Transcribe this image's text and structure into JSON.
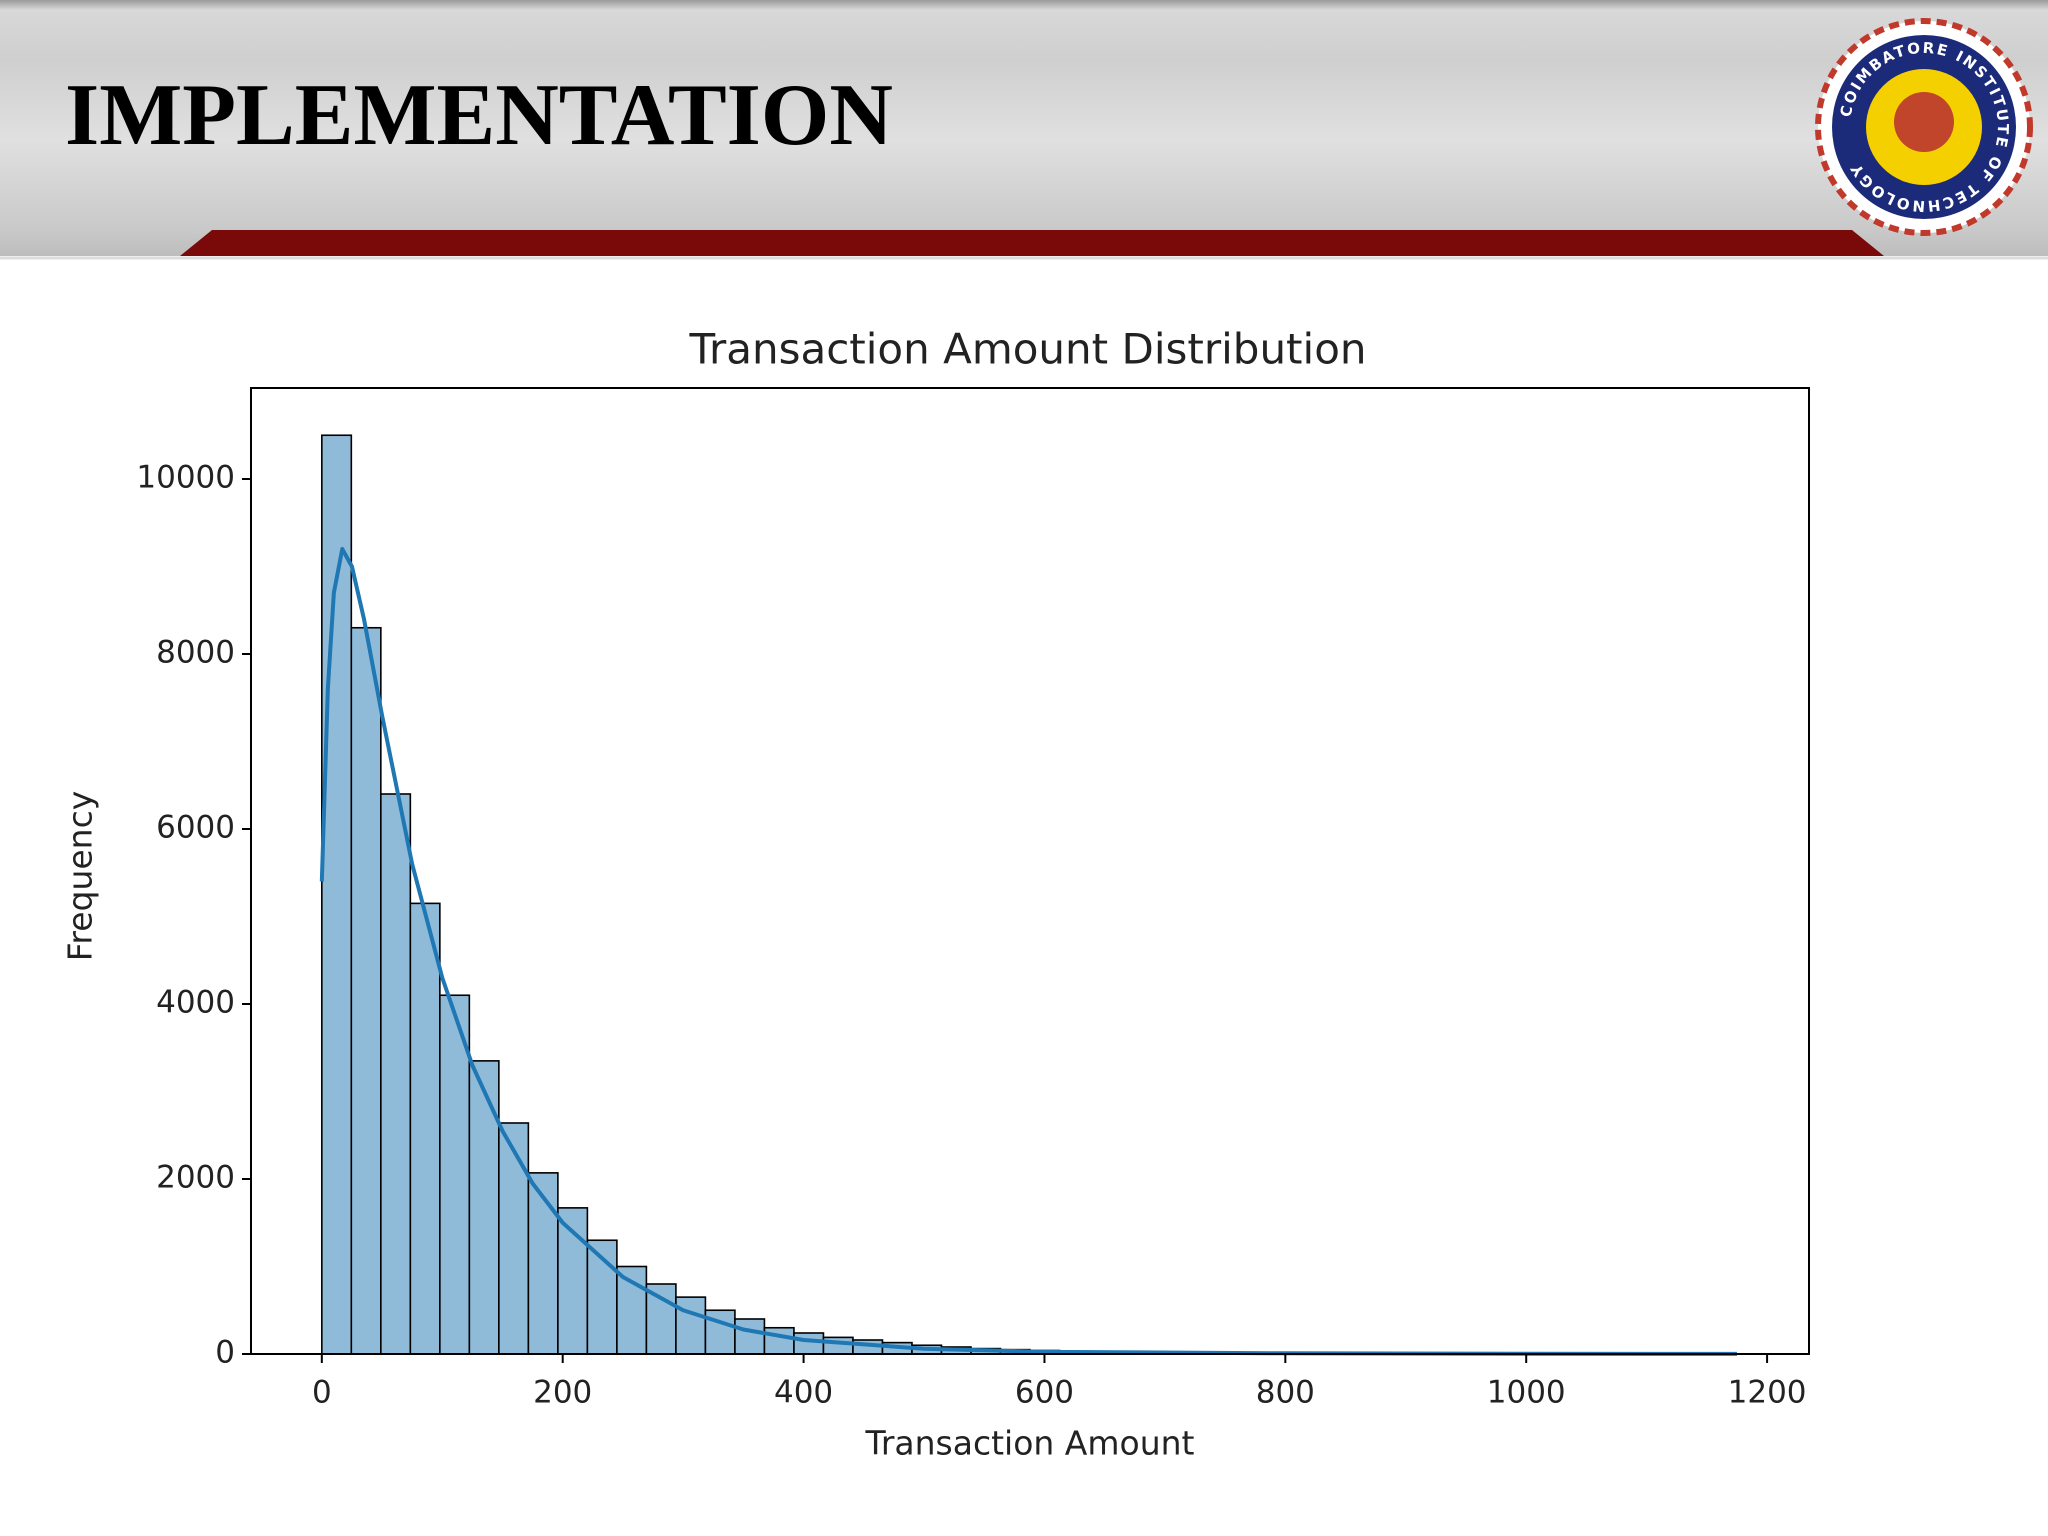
{
  "header": {
    "title": "IMPLEMENTATION",
    "logo_text": "COIMBATORE INSTITUTE OF TECHNOLOGY"
  },
  "chart_data": {
    "type": "histogram",
    "title": "Transaction Amount Distribution",
    "x_label": "Transaction Amount",
    "y_label": "Frequency",
    "bins": [
      0,
      24.5,
      49,
      73.5,
      98,
      122.5,
      147,
      171.5,
      196,
      220.5,
      245,
      269.5,
      294,
      318.5,
      343,
      367.5,
      392,
      416.5,
      441,
      465.5,
      490,
      514.5,
      539,
      563.5,
      588,
      612.5,
      637,
      661.5,
      686,
      710.5,
      735,
      759.5,
      784,
      808.5,
      833,
      857.5,
      882,
      906.5,
      931,
      955.5,
      980,
      1004.5,
      1029,
      1053.5,
      1078,
      1102.5,
      1127,
      1151.5,
      1176
    ],
    "values": [
      10500,
      8300,
      6400,
      5150,
      4100,
      3350,
      2640,
      2070,
      1670,
      1300,
      1000,
      800,
      650,
      500,
      400,
      300,
      240,
      190,
      160,
      130,
      100,
      80,
      62,
      50,
      40,
      32,
      26,
      20,
      16,
      13,
      10,
      8,
      7,
      6,
      5,
      4,
      3,
      3,
      2,
      2,
      2,
      1,
      1,
      1,
      1,
      1,
      1,
      1
    ],
    "color": "#8fbbd9",
    "edgecolor": "#000000",
    "kde": {
      "color": "#1f77b4",
      "x": [
        0,
        5,
        10,
        17,
        25,
        35,
        50,
        75,
        100,
        125,
        150,
        175,
        200,
        250,
        300,
        350,
        400,
        500,
        600,
        800,
        1000,
        1175
      ],
      "y": [
        5400,
        7600,
        8700,
        9200,
        9000,
        8400,
        7300,
        5600,
        4300,
        3300,
        2550,
        1950,
        1500,
        880,
        500,
        280,
        160,
        60,
        25,
        8,
        3,
        1
      ]
    },
    "xlim": [
      -58.8,
      1234.8
    ],
    "ylim": [
      0,
      11040
    ],
    "xticks": [
      0,
      200,
      400,
      600,
      800,
      1000,
      1200
    ],
    "yticks": [
      0,
      2000,
      4000,
      6000,
      8000,
      10000
    ]
  }
}
